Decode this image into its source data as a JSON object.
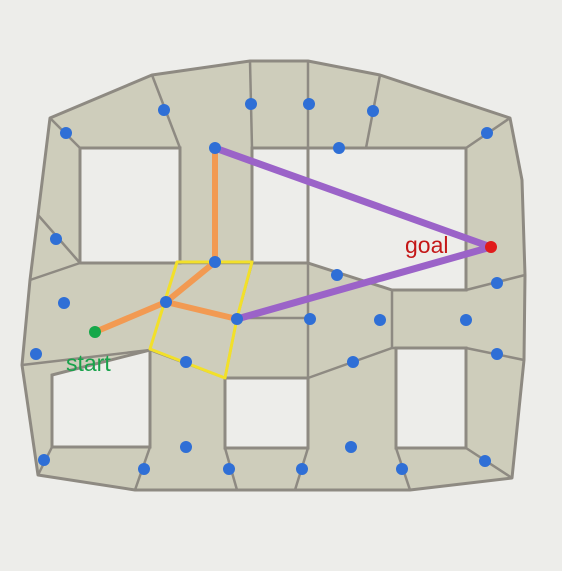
{
  "labels": {
    "start": "start",
    "goal": "goal"
  },
  "colors": {
    "background": "#ededea",
    "region_fill": "#cecdbb",
    "region_stroke": "#8e8a82",
    "hole_fill": "#ededea",
    "node": "#2f6fd6",
    "start": "#16a84a",
    "goal": "#e11b1b",
    "start_text": "#18a24b",
    "goal_text": "#c41717",
    "path_orange": "#f29a52",
    "path_purple": "#9b63c8",
    "highlight_cell": "#f2e02a"
  }
}
